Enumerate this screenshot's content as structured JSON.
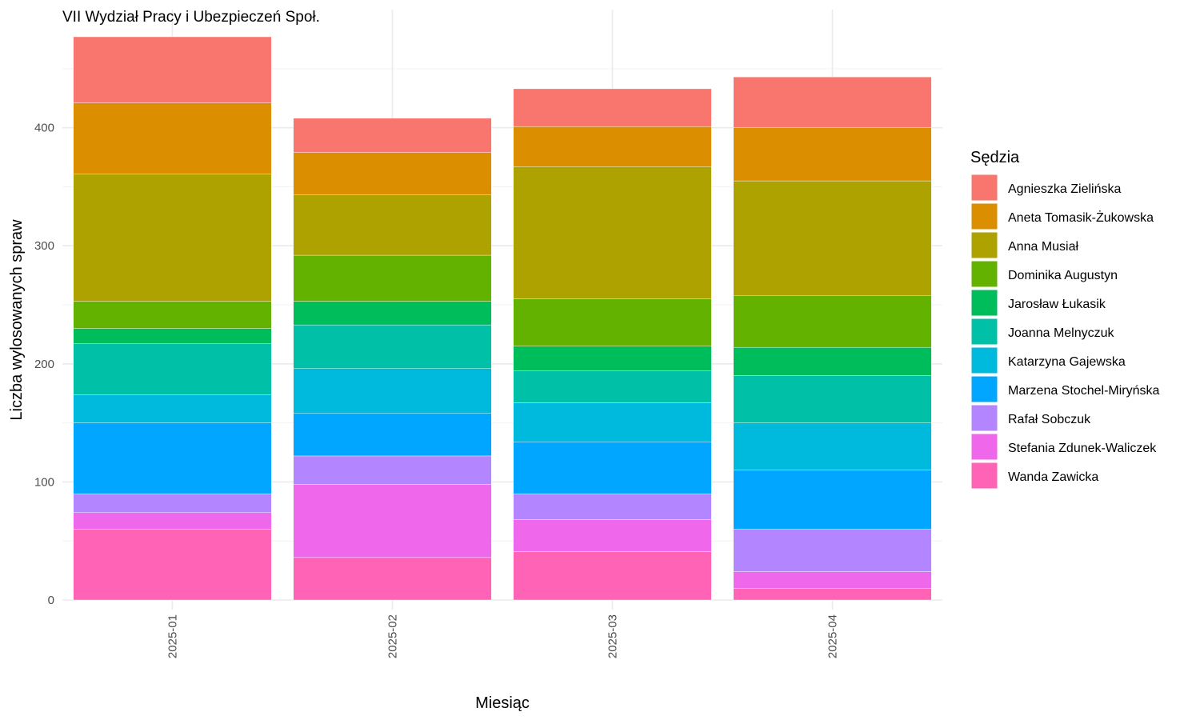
{
  "chart_data": {
    "type": "bar",
    "stacked": true,
    "title": "VII Wydział Pracy i Ubezpieczeń Społ.",
    "xlabel": "Miesiąc",
    "ylabel": "Liczba wylosowanych spraw",
    "ylim": [
      0,
      477
    ],
    "yticks": [
      0,
      100,
      200,
      300,
      400
    ],
    "grid": true,
    "legend_position": "right",
    "legend_title": "Sędzia",
    "categories": [
      "2025-01",
      "2025-02",
      "2025-03",
      "2025-04"
    ],
    "series": [
      {
        "name": "Agnieszka Zielińska",
        "color": "#F8766D",
        "values": [
          56,
          29,
          32,
          43
        ]
      },
      {
        "name": "Aneta Tomasik-Żukowska",
        "color": "#DB8E00",
        "values": [
          60,
          36,
          34,
          45
        ]
      },
      {
        "name": "Anna Musiał",
        "color": "#AEA200",
        "values": [
          108,
          51,
          112,
          97
        ]
      },
      {
        "name": "Dominika Augustyn",
        "color": "#64B200",
        "values": [
          23,
          39,
          40,
          44
        ]
      },
      {
        "name": "Jarosław Łukasik",
        "color": "#00BD5C",
        "values": [
          13,
          20,
          21,
          24
        ]
      },
      {
        "name": "Joanna Melnyczuk",
        "color": "#00C1A7",
        "values": [
          43,
          37,
          27,
          40
        ]
      },
      {
        "name": "Katarzyna Gajewska",
        "color": "#00BADE",
        "values": [
          24,
          38,
          33,
          40
        ]
      },
      {
        "name": "Marzena Stochel-Miryńska",
        "color": "#00A6FF",
        "values": [
          60,
          36,
          44,
          50
        ]
      },
      {
        "name": "Rafał Sobczuk",
        "color": "#B385FF",
        "values": [
          16,
          24,
          22,
          36
        ]
      },
      {
        "name": "Stefania Zdunek-Waliczek",
        "color": "#EF67EB",
        "values": [
          14,
          62,
          27,
          14
        ]
      },
      {
        "name": "Wanda Zawicka",
        "color": "#FF63B6",
        "values": [
          60,
          36,
          41,
          10
        ]
      }
    ]
  }
}
